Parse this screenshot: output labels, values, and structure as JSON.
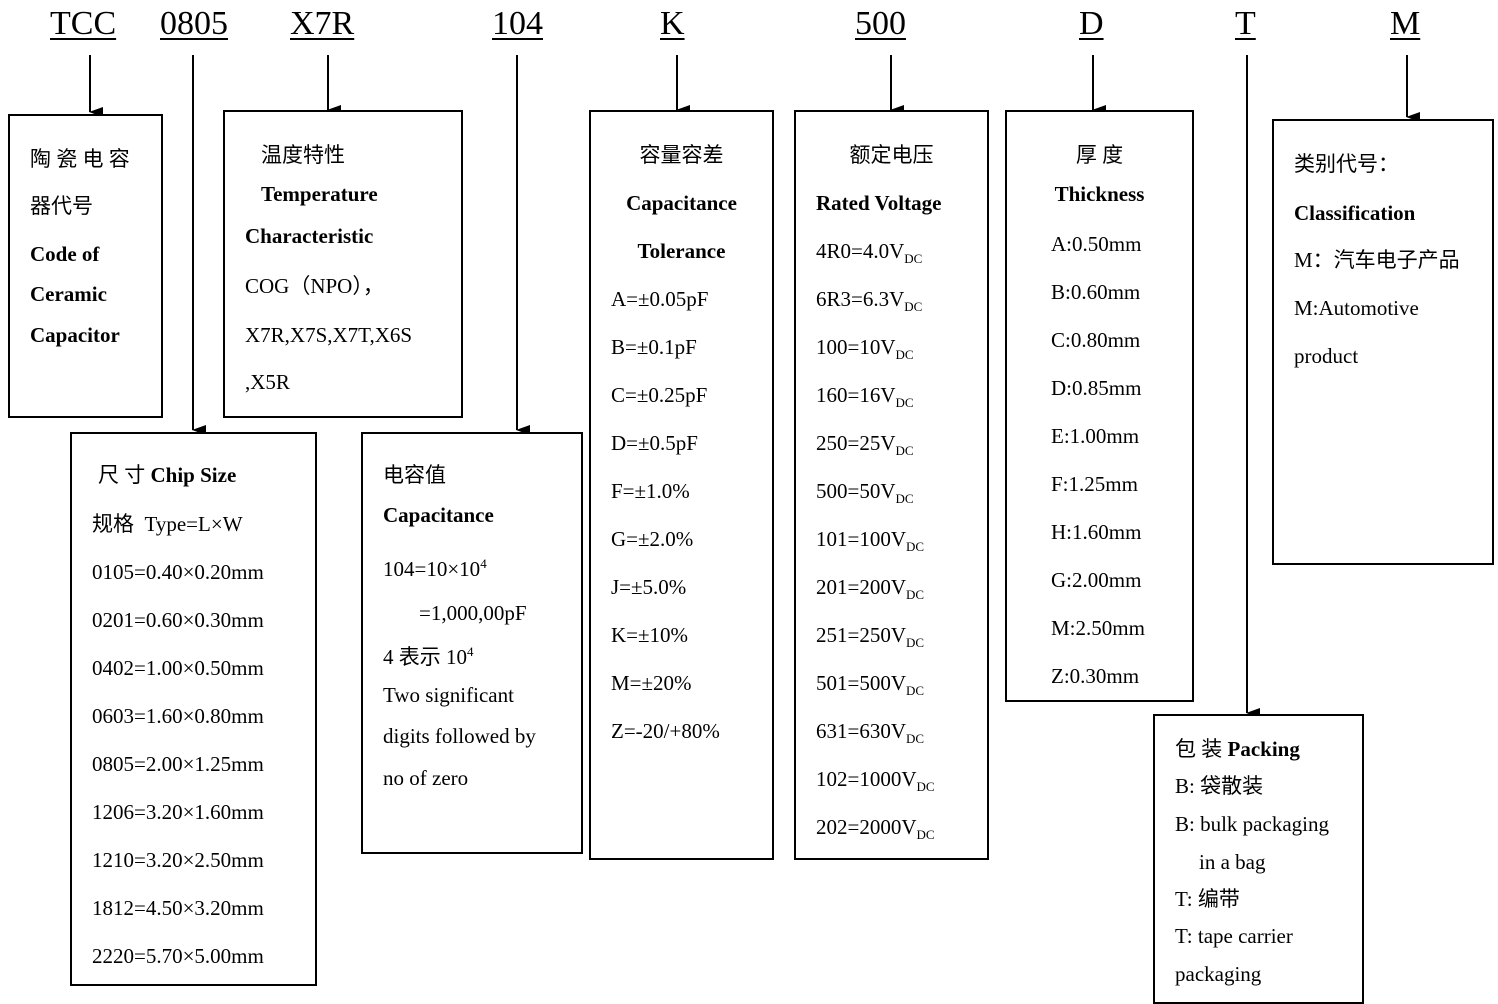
{
  "codes": [
    "TCC",
    "0805",
    "X7R",
    "104",
    "K",
    "500",
    "D",
    "T",
    "M"
  ],
  "ceramic": {
    "cn1": "陶 瓷 电 容",
    "cn2": "器代号",
    "en": [
      "Code of",
      "Ceramic",
      "Capacitor"
    ]
  },
  "temperature": {
    "cn": "温度特性",
    "en1": "Temperature",
    "en2": "Characteristic",
    "values": [
      "COG（NPO），",
      "X7R,X7S,X7T,X6S",
      ",X5R"
    ]
  },
  "chip_size": {
    "cn": "尺  寸",
    "en": "Chip Size",
    "type_cn": "规格",
    "type_en": "Type=L×W",
    "rows": [
      "0105=0.40×0.20mm",
      "0201=0.60×0.30mm",
      "0402=1.00×0.50mm",
      "0603=1.60×0.80mm",
      "0805=2.00×1.25mm",
      "1206=3.20×1.60mm",
      "1210=3.20×2.50mm",
      "1812=4.50×3.20mm",
      "2220=5.70×5.00mm"
    ]
  },
  "capacitance": {
    "cn": "电容值",
    "en": "Capacitance",
    "eq1_base": "104=10×10",
    "eq1_exp": "4",
    "eq2": "=1,000,00pF",
    "eq3_base": "4 表示 10",
    "eq3_exp": "4",
    "desc": [
      "Two significant",
      "digits followed by",
      "no of zero"
    ]
  },
  "tolerance": {
    "cn": "容量容差",
    "en1": "Capacitance",
    "en2": "Tolerance",
    "rows": [
      "A=±0.05pF",
      "B=±0.1pF",
      "C=±0.25pF",
      "D=±0.5pF",
      "F=±1.0%",
      "G=±2.0%",
      "J=±5.0%",
      "K=±10%",
      "M=±20%",
      "Z=-20/+80%"
    ]
  },
  "voltage": {
    "cn": "额定电压",
    "en": "Rated Voltage",
    "unit_sub": "DC",
    "rows": [
      "4R0=4.0V",
      "6R3=6.3V",
      "100=10V",
      "160=16V",
      "250=25V",
      "500=50V",
      "101=100V",
      "201=200V",
      "251=250V",
      "501=500V",
      "631=630V",
      "102=1000V",
      "202=2000V"
    ]
  },
  "thickness": {
    "cn": "厚  度",
    "en": "Thickness",
    "rows": [
      "A:0.50mm",
      "B:0.60mm",
      "C:0.80mm",
      "D:0.85mm",
      "E:1.00mm",
      "F:1.25mm",
      "H:1.60mm",
      "G:2.00mm",
      "M:2.50mm",
      "Z:0.30mm"
    ]
  },
  "packing": {
    "cn": "包  装",
    "en": "Packing",
    "lines": [
      "B:  袋散装",
      "B: bulk packaging",
      "in a bag",
      "T:  编带",
      "T: tape carrier",
      "packaging"
    ]
  },
  "classification": {
    "cn": "类别代号：",
    "en": "Classification",
    "lines": [
      "M：汽车电子产品",
      "M:Automotive",
      "product"
    ]
  }
}
